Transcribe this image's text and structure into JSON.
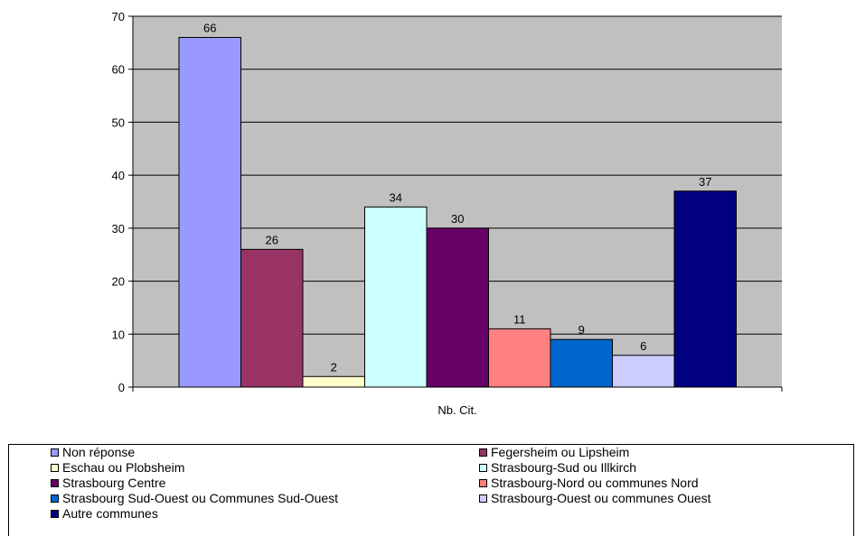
{
  "chart_data": {
    "type": "bar",
    "categories": [
      "Nb. Cit."
    ],
    "xlabel": "Nb. Cit.",
    "ylim": [
      0,
      70
    ],
    "yticks": [
      0,
      10,
      20,
      30,
      40,
      50,
      60,
      70
    ],
    "grid": true,
    "plot_background": "#c0c0c0",
    "legend_position": "bottom",
    "series": [
      {
        "name": "Non réponse",
        "values": [
          66
        ],
        "color": "#9999ff"
      },
      {
        "name": "Fegersheim ou Lipsheim",
        "values": [
          26
        ],
        "color": "#993366"
      },
      {
        "name": "Eschau ou Plobsheim",
        "values": [
          2
        ],
        "color": "#ffffcc"
      },
      {
        "name": "Strasbourg-Sud ou Illkirch",
        "values": [
          34
        ],
        "color": "#ccffff"
      },
      {
        "name": "Strasbourg Centre",
        "values": [
          30
        ],
        "color": "#660066"
      },
      {
        "name": "Strasbourg-Nord ou communes Nord",
        "values": [
          11
        ],
        "color": "#ff8080"
      },
      {
        "name": "Strasbourg Sud-Ouest ou Communes Sud-Ouest",
        "values": [
          9
        ],
        "color": "#0066cc"
      },
      {
        "name": "Strasbourg-Ouest ou communes Ouest",
        "values": [
          6
        ],
        "color": "#ccccff"
      },
      {
        "name": "Autre communes",
        "values": [
          37
        ],
        "color": "#000080"
      }
    ]
  }
}
